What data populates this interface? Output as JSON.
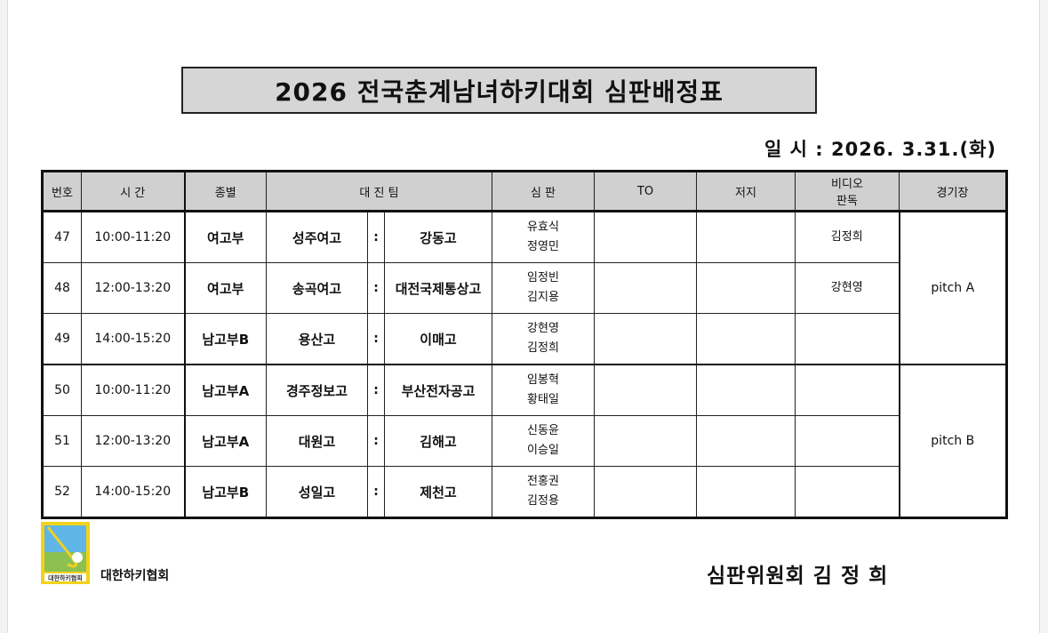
{
  "title": "2026 전국춘계남녀하키대회 심판배정표",
  "date_line": "일 시 : 2026. 3.31.(화)",
  "headers": {
    "no": "번호",
    "time": "시 간",
    "division": "종별",
    "teams": "대 진 팀",
    "referee": "심 판",
    "to": "TO",
    "judge": "저지",
    "video_1": "비디오",
    "video_2": "판독",
    "venue": "경기장"
  },
  "separator": ":",
  "rows": [
    {
      "no": "47",
      "time": "10:00-11:20",
      "division": "여고부",
      "team_a": "성주여고",
      "team_b": "강동고",
      "ref1": "유효식",
      "ref2": "정영민",
      "to": "",
      "judge": "",
      "video": "김정희"
    },
    {
      "no": "48",
      "time": "12:00-13:20",
      "division": "여고부",
      "team_a": "송곡여고",
      "team_b": "대전국제통상고",
      "ref1": "임정빈",
      "ref2": "김지용",
      "to": "",
      "judge": "",
      "video": "강현영"
    },
    {
      "no": "49",
      "time": "14:00-15:20",
      "division": "남고부B",
      "team_a": "용산고",
      "team_b": "이매고",
      "ref1": "강현영",
      "ref2": "김정희",
      "to": "",
      "judge": "",
      "video": ""
    },
    {
      "no": "50",
      "time": "10:00-11:20",
      "division": "남고부A",
      "team_a": "경주정보고",
      "team_b": "부산전자공고",
      "ref1": "임봉혁",
      "ref2": "황태일",
      "to": "",
      "judge": "",
      "video": ""
    },
    {
      "no": "51",
      "time": "12:00-13:20",
      "division": "남고부A",
      "team_a": "대원고",
      "team_b": "김해고",
      "ref1": "신동윤",
      "ref2": "이승일",
      "to": "",
      "judge": "",
      "video": ""
    },
    {
      "no": "52",
      "time": "14:00-15:20",
      "division": "남고부B",
      "team_a": "성일고",
      "team_b": "제천고",
      "ref1": "전홍권",
      "ref2": "김정용",
      "to": "",
      "judge": "",
      "video": ""
    }
  ],
  "venues": [
    "pitch A",
    "pitch B"
  ],
  "footer": {
    "association": "대한하키협회",
    "logo_text": "KOREA HOCKEY ASSOCIATION 대한하키협회",
    "signature": "심판위원회 김 정 희"
  },
  "colors": {
    "header_bg": "#d0d0d0",
    "logo_bg": "#f2d21b",
    "logo_sky": "#5fb6e6",
    "logo_grass": "#8cc152"
  }
}
